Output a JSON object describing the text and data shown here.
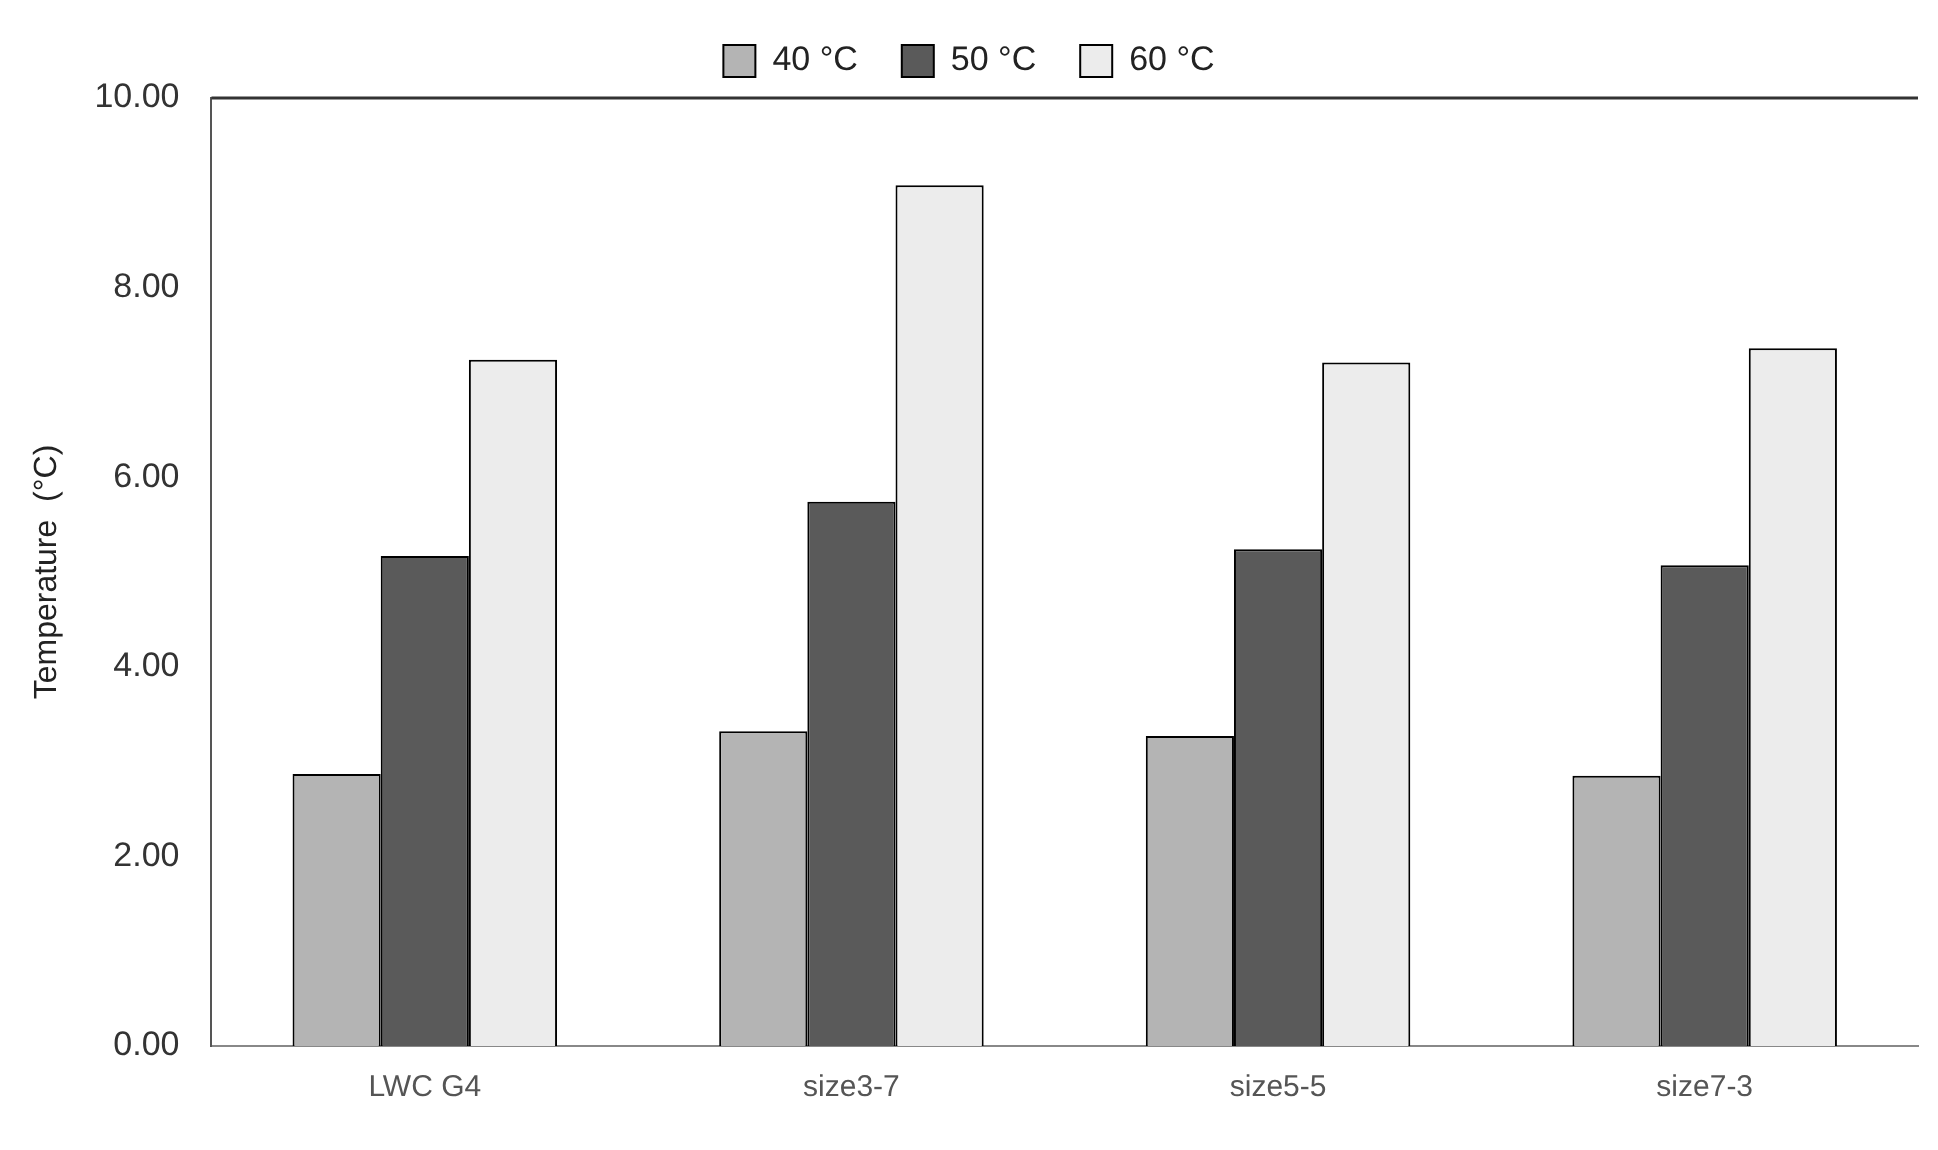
{
  "chart_data": {
    "type": "bar",
    "ylabel": "Temperature  (°C)",
    "categories": [
      "LWC G4",
      "size3-7",
      "size5-5",
      "size7-3"
    ],
    "series": [
      {
        "name": "40 °C",
        "color": "#b4b4b4",
        "values": [
          2.87,
          3.32,
          3.27,
          2.85
        ]
      },
      {
        "name": "50 °C",
        "color": "#5a5a5a",
        "values": [
          5.17,
          5.74,
          5.24,
          5.07
        ]
      },
      {
        "name": "60 °C",
        "color": "#ececec",
        "values": [
          7.24,
          9.08,
          7.21,
          7.36
        ]
      }
    ],
    "ylim": [
      0,
      10
    ],
    "yticks": [
      {
        "value": 0,
        "label": "0.00"
      },
      {
        "value": 2,
        "label": "2.00"
      },
      {
        "value": 4,
        "label": "4.00"
      },
      {
        "value": 6,
        "label": "6.00"
      },
      {
        "value": 8,
        "label": "8.00"
      },
      {
        "value": 10,
        "label": "10.00"
      }
    ],
    "grid": false,
    "legend": "top"
  }
}
